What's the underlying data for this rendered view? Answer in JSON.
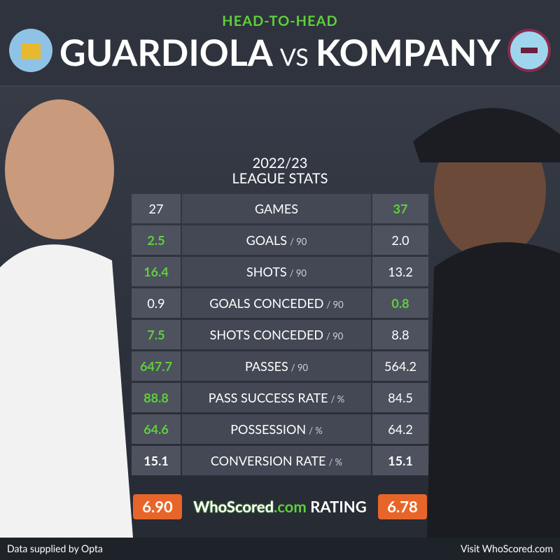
{
  "header": {
    "kicker": "HEAD-TO-HEAD",
    "left_name": "GUARDIOLA",
    "vs": "VS",
    "right_name": "KOMPANY"
  },
  "season": "2022/23",
  "subtitle": "LEAGUE STATS",
  "table": {
    "rows": [
      {
        "left": "27",
        "label": "GAMES",
        "unit": null,
        "right": "37",
        "highlight": "right"
      },
      {
        "left": "2.5",
        "label": "GOALS",
        "unit": "/ 90",
        "right": "2.0",
        "highlight": "left"
      },
      {
        "left": "16.4",
        "label": "SHOTS",
        "unit": "/ 90",
        "right": "13.2",
        "highlight": "left"
      },
      {
        "left": "0.9",
        "label": "GOALS CONCEDED",
        "unit": "/ 90",
        "right": "0.8",
        "highlight": "right"
      },
      {
        "left": "7.5",
        "label": "SHOTS CONCEDED",
        "unit": "/ 90",
        "right": "8.8",
        "highlight": "left"
      },
      {
        "left": "647.7",
        "label": "PASSES",
        "unit": "/ 90",
        "right": "564.2",
        "highlight": "left"
      },
      {
        "left": "88.8",
        "label": "PASS SUCCESS RATE",
        "unit": "/ %",
        "right": "84.5",
        "highlight": "left"
      },
      {
        "left": "64.6",
        "label": "POSSESSION",
        "unit": "/ %",
        "right": "64.2",
        "highlight": "left"
      },
      {
        "left": "15.1",
        "label": "CONVERSION RATE",
        "unit": "/ %",
        "right": "15.1",
        "highlight": "none"
      }
    ]
  },
  "rating": {
    "left": "6.90",
    "brand": "WhoScored",
    "brand_suffix": ".com",
    "label": "RATING",
    "right": "6.78"
  },
  "footer": {
    "left": "Data supplied by Opta",
    "right": "Visit WhoScored.com"
  }
}
